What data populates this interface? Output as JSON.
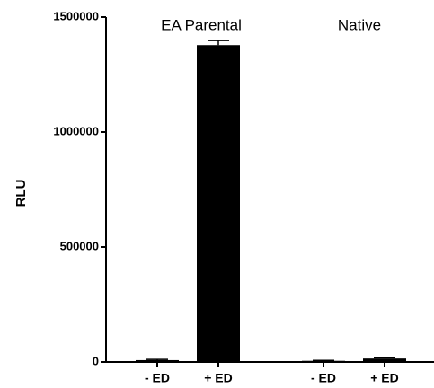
{
  "chart_data": {
    "type": "bar",
    "y_label": "RLU",
    "annotations": [
      "EA Parental",
      "Native"
    ],
    "categories": [
      "- ED",
      "+ ED",
      "- ED",
      "+ ED"
    ],
    "values": [
      8000,
      1378000,
      5000,
      15000
    ],
    "errors": [
      3000,
      20000,
      2000,
      3000
    ],
    "color": "#000000",
    "ylim": [
      0,
      1500000
    ],
    "yticks": [
      0,
      500000,
      1000000,
      1500000
    ],
    "grid": false
  }
}
